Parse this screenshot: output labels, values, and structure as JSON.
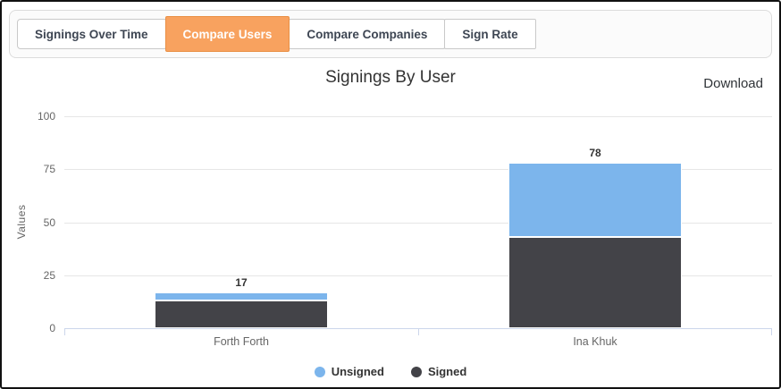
{
  "tabs": {
    "items": [
      {
        "label": "Signings Over Time",
        "active": false
      },
      {
        "label": "Compare Users",
        "active": true
      },
      {
        "label": "Compare Companies",
        "active": false
      },
      {
        "label": "Sign Rate",
        "active": false
      }
    ]
  },
  "header": {
    "download_label": "Download"
  },
  "chart_data": {
    "type": "bar",
    "stacked": true,
    "title": "Signings By User",
    "categories": [
      "Forth Forth",
      "Ina Khuk"
    ],
    "series": [
      {
        "name": "Unsigned",
        "color": "#7cb5ec",
        "values": [
          4,
          35
        ]
      },
      {
        "name": "Signed",
        "color": "#434348",
        "values": [
          13,
          43
        ]
      }
    ],
    "stack_order_bottom_to_top": [
      "Signed",
      "Unsigned"
    ],
    "totals": [
      17,
      78
    ],
    "total_labels": [
      "17",
      "78"
    ],
    "xlabel": "",
    "ylabel": "Values",
    "ylim": [
      0,
      100
    ],
    "yticks": [
      0,
      25,
      50,
      75,
      100
    ],
    "grid": true,
    "legend_position": "bottom",
    "colors": {
      "gridline": "#e6e6e6",
      "axis_line": "#ccd6eb",
      "axis_label": "#666666",
      "title_text": "#333333",
      "data_label": "#333333",
      "active_tab_bg": "#f8a25f",
      "active_tab_border": "#e98f44"
    }
  }
}
